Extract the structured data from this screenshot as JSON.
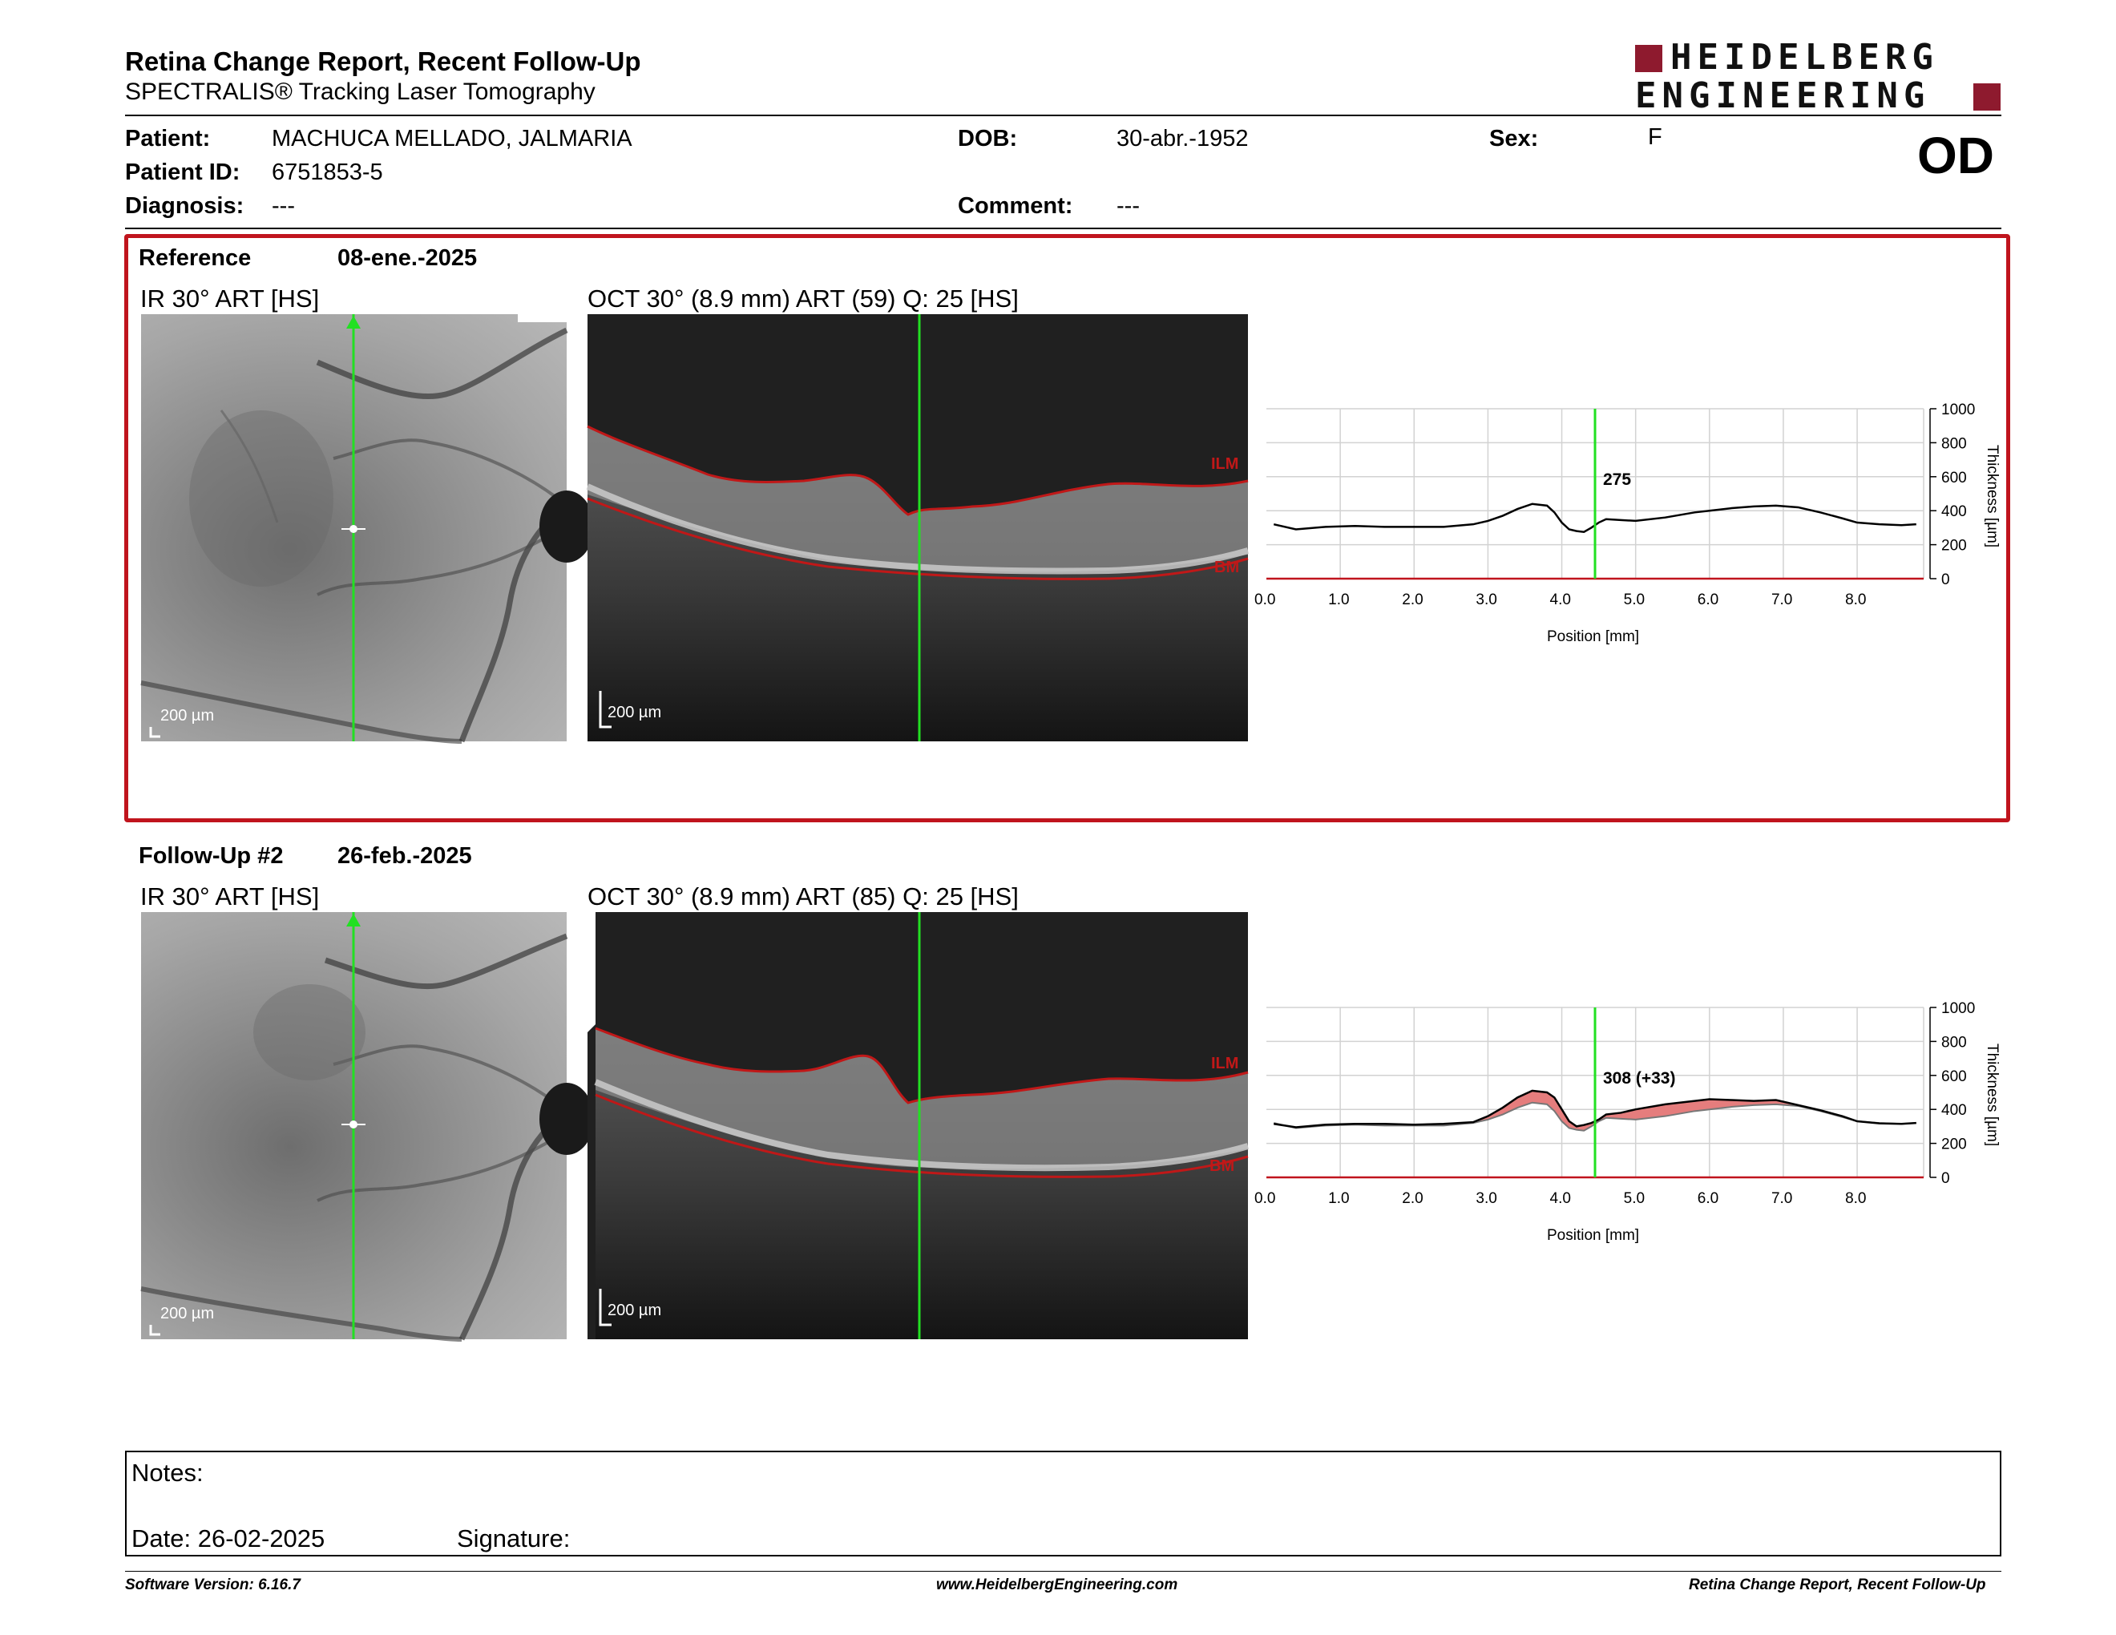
{
  "header": {
    "title": "Retina Change Report, Recent Follow-Up",
    "subtitle": "SPECTRALIS® Tracking Laser Tomography",
    "logo_line1": "HEIDELBERG",
    "logo_line2": "ENGINEERING",
    "logo_color": "#8e1a2e"
  },
  "patient": {
    "patient_label": "Patient:",
    "patient_value": "MACHUCA MELLADO, JALMARIA",
    "id_label": "Patient ID:",
    "id_value": "6751853-5",
    "diagnosis_label": "Diagnosis:",
    "diagnosis_value": "---",
    "dob_label": "DOB:",
    "dob_value": "30-abr.-1952",
    "comment_label": "Comment:",
    "comment_value": "---",
    "sex_label": "Sex:",
    "sex_value": "F",
    "eye": "OD"
  },
  "reference": {
    "label": "Reference",
    "date": "08-ene.-2025",
    "ir_title": "IR 30° ART [HS]",
    "oct_title": "OCT 30° (8.9 mm) ART (59) Q: 25 [HS]",
    "ir_scale": "200 µm",
    "oct_scale": "200 µm",
    "ilm": "ILM",
    "bm": "BM",
    "value_label": "275"
  },
  "followup": {
    "label": "Follow-Up #2",
    "date": "26-feb.-2025",
    "ir_title": "IR 30° ART [HS]",
    "oct_title": "OCT 30° (8.9 mm) ART (85) Q: 25 [HS]",
    "ir_scale": "200 µm",
    "oct_scale": "200 µm",
    "ilm": "ILM",
    "bm": "BM",
    "value_label": "308 (+33)"
  },
  "chart_data": [
    {
      "type": "line",
      "xlabel": "Position [mm]",
      "ylabel": "Thickness [µm]",
      "xlim": [
        0,
        8.9
      ],
      "ylim": [
        0,
        1000
      ],
      "xticks": [
        "0.0",
        "1.0",
        "2.0",
        "3.0",
        "4.0",
        "5.0",
        "6.0",
        "7.0",
        "8.0"
      ],
      "yticks": [
        "0",
        "200",
        "400",
        "600",
        "800",
        "1000"
      ],
      "cursor_x": 4.45,
      "cursor_label": "275",
      "series": [
        {
          "x": [
            0.1,
            0.4,
            0.8,
            1.2,
            1.6,
            2.0,
            2.4,
            2.8,
            3.0,
            3.2,
            3.4,
            3.6,
            3.8,
            3.9,
            4.0,
            4.1,
            4.2,
            4.3,
            4.4,
            4.5,
            4.6,
            4.8,
            5.0,
            5.4,
            5.8,
            6.0,
            6.3,
            6.6,
            6.9,
            7.2,
            7.5,
            7.8,
            8.0,
            8.3,
            8.6,
            8.8
          ],
          "y": [
            320,
            290,
            305,
            310,
            305,
            305,
            305,
            320,
            340,
            370,
            410,
            440,
            430,
            390,
            330,
            290,
            280,
            275,
            300,
            330,
            350,
            345,
            340,
            360,
            390,
            400,
            415,
            425,
            430,
            420,
            390,
            355,
            330,
            320,
            315,
            320
          ]
        }
      ]
    },
    {
      "type": "area",
      "xlabel": "Position [mm]",
      "ylabel": "Thickness [µm]",
      "xlim": [
        0,
        8.9
      ],
      "ylim": [
        0,
        1000
      ],
      "xticks": [
        "0.0",
        "1.0",
        "2.0",
        "3.0",
        "4.0",
        "5.0",
        "6.0",
        "7.0",
        "8.0"
      ],
      "yticks": [
        "0",
        "200",
        "400",
        "600",
        "800",
        "1000"
      ],
      "cursor_x": 4.45,
      "cursor_label": "308 (+33)",
      "fill_color": "#e57d7d",
      "series": [
        {
          "x": [
            0.1,
            0.4,
            0.8,
            1.2,
            1.6,
            2.0,
            2.4,
            2.8,
            3.0,
            3.2,
            3.4,
            3.6,
            3.8,
            3.9,
            4.0,
            4.1,
            4.2,
            4.3,
            4.4,
            4.5,
            4.6,
            4.8,
            5.0,
            5.4,
            5.8,
            6.0,
            6.3,
            6.6,
            6.9,
            7.2,
            7.5,
            7.8,
            8.0,
            8.3,
            8.6,
            8.8
          ],
          "y": [
            320,
            290,
            305,
            310,
            305,
            305,
            305,
            320,
            340,
            370,
            410,
            440,
            430,
            390,
            330,
            290,
            280,
            275,
            300,
            330,
            350,
            345,
            340,
            360,
            390,
            400,
            415,
            425,
            430,
            420,
            390,
            355,
            330,
            320,
            315,
            320
          ]
        },
        {
          "x": [
            0.1,
            0.4,
            0.8,
            1.2,
            1.6,
            2.0,
            2.4,
            2.8,
            3.0,
            3.2,
            3.4,
            3.6,
            3.8,
            3.9,
            4.0,
            4.1,
            4.2,
            4.3,
            4.4,
            4.5,
            4.6,
            4.8,
            5.0,
            5.4,
            5.8,
            6.0,
            6.3,
            6.6,
            6.9,
            7.2,
            7.5,
            7.8,
            8.0,
            8.3,
            8.6,
            8.8
          ],
          "y": [
            315,
            295,
            310,
            315,
            315,
            310,
            315,
            325,
            360,
            410,
            470,
            510,
            500,
            470,
            400,
            330,
            300,
            308,
            320,
            340,
            370,
            380,
            400,
            430,
            450,
            460,
            455,
            450,
            455,
            425,
            395,
            360,
            330,
            318,
            315,
            320
          ]
        }
      ]
    }
  ],
  "notes": {
    "notes_label": "Notes:",
    "date_label": "Date: 26-02-2025",
    "signature_label": "Signature:"
  },
  "footer": {
    "software": "Software Version: 6.16.7",
    "website": "www.HeidelbergEngineering.com",
    "report_name": "Retina Change Report, Recent Follow-Up"
  }
}
